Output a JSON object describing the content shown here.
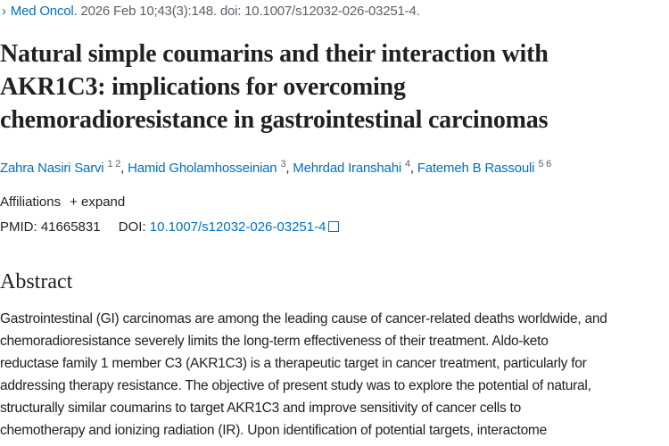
{
  "citation": {
    "journal": "Med Oncol.",
    "details": " 2026 Feb 10;43(3):148. doi: 10.1007/s12032-026-03251-4."
  },
  "title_lines": [
    "Natural simple coumarins and their interaction with",
    "AKR1C3: implications for overcoming",
    "chemoradioresistance in gastrointestinal carcinomas"
  ],
  "authors": [
    {
      "name": "Zahra Nasiri Sarvi",
      "affil": "1 2"
    },
    {
      "name": "Hamid Gholamhosseinian",
      "affil": "3"
    },
    {
      "name": "Mehrdad Iranshahi",
      "affil": "4"
    },
    {
      "name": "Fatemeh B Rassouli",
      "affil": "5 6"
    }
  ],
  "affiliations": {
    "label": "Affiliations",
    "expand": "+ expand"
  },
  "ids": {
    "pmid_label": "PMID:",
    "pmid": "41665831",
    "doi_label": "DOI:",
    "doi": "10.1007/s12032-026-03251-4"
  },
  "abstract": {
    "heading": "Abstract",
    "lines": [
      "Gastrointestinal (GI) carcinomas are among the leading cause of cancer-related deaths worldwide, and",
      "chemoradioresistance severely limits the long-term effectiveness of their treatment. Aldo-keto",
      "reductase family 1 member C3 (AKR1C3) is a therapeutic target in cancer treatment, particularly for",
      "addressing therapy resistance. The objective of present study was to explore the potential of natural,",
      "structurally similar coumarins to target AKR1C3 and improve sensitivity of cancer cells to",
      "chemotherapy and ionizing radiation (IR). Upon identification of potential targets, interactome"
    ]
  },
  "colors": {
    "link": "#0071bc",
    "text": "#212121",
    "muted": "#5b616b"
  }
}
